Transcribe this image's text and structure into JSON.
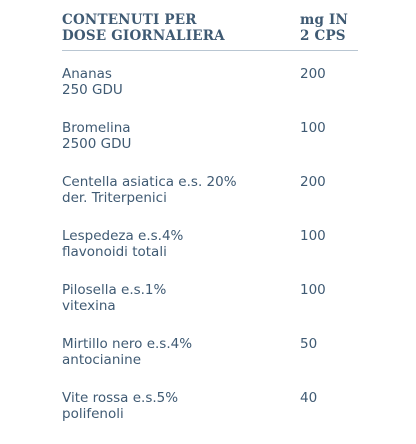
{
  "header": {
    "col1": "CONTENUTI PER\nDOSE GIORNALIERA",
    "col2": "mg IN\n2 CPS"
  },
  "rows": [
    {
      "name": "Ananas\n250 GDU",
      "value": "200"
    },
    {
      "name": "Bromelina\n2500 GDU",
      "value": "100"
    },
    {
      "name": "Centella asiatica e.s. 20%\nder. Triterpenici",
      "value": "200"
    },
    {
      "name": "Lespedeza e.s.4%\nflavonoidi totali",
      "value": "100"
    },
    {
      "name": "Pilosella e.s.1%\nvitexina",
      "value": "100"
    },
    {
      "name": "Mirtillo nero e.s.4%\nantocianine",
      "value": "50"
    },
    {
      "name": "Vite rossa e.s.5%\npolifenoli",
      "value": "40"
    }
  ]
}
